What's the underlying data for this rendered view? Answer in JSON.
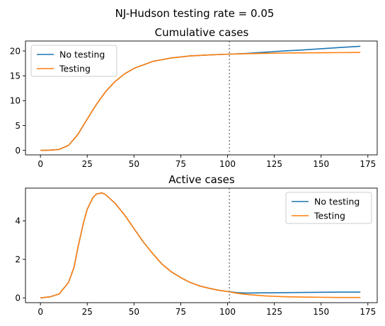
{
  "suptitle": "NJ-Hudson testing rate = 0.05",
  "colors": {
    "no_testing": "#1f77b4",
    "testing": "#ff7f0e",
    "vline": "#808080"
  },
  "chart_data": [
    {
      "type": "line",
      "title": "Cumulative cases",
      "xlabel": "",
      "ylabel": "",
      "xlim": [
        -8,
        180
      ],
      "ylim": [
        -0.9,
        22
      ],
      "xticks": [
        0,
        25,
        50,
        75,
        100,
        125,
        150,
        175
      ],
      "yticks": [
        0,
        5,
        10,
        15,
        20
      ],
      "vline": 101,
      "legend": "top-left",
      "grid": false,
      "series": [
        {
          "name": "No testing",
          "x": [
            0,
            5,
            10,
            15,
            20,
            25,
            30,
            35,
            40,
            45,
            50,
            60,
            70,
            80,
            90,
            100,
            110,
            120,
            130,
            140,
            150,
            160,
            171
          ],
          "y": [
            0.0,
            0.05,
            0.2,
            1.0,
            3.2,
            6.3,
            9.3,
            11.9,
            13.9,
            15.4,
            16.5,
            17.9,
            18.6,
            19.0,
            19.2,
            19.35,
            19.5,
            19.75,
            20.0,
            20.2,
            20.45,
            20.7,
            20.95
          ]
        },
        {
          "name": "Testing",
          "x": [
            0,
            5,
            10,
            15,
            20,
            25,
            30,
            35,
            40,
            45,
            50,
            60,
            70,
            80,
            90,
            100,
            110,
            120,
            130,
            140,
            150,
            160,
            171
          ],
          "y": [
            0.0,
            0.05,
            0.2,
            1.0,
            3.2,
            6.3,
            9.3,
            11.9,
            13.9,
            15.4,
            16.5,
            17.9,
            18.6,
            19.0,
            19.2,
            19.35,
            19.45,
            19.52,
            19.58,
            19.62,
            19.65,
            19.67,
            19.7
          ]
        }
      ]
    },
    {
      "type": "line",
      "title": "Active cases",
      "xlabel": "",
      "ylabel": "",
      "xlim": [
        -8,
        180
      ],
      "ylim": [
        -0.25,
        5.7
      ],
      "xticks": [
        0,
        25,
        50,
        75,
        100,
        125,
        150,
        175
      ],
      "yticks": [
        0,
        2,
        4
      ],
      "vline": 101,
      "legend": "top-right",
      "grid": false,
      "series": [
        {
          "name": "No testing",
          "x": [
            0,
            5,
            10,
            15,
            18,
            20,
            23,
            25,
            28,
            30,
            33,
            35,
            40,
            45,
            50,
            55,
            60,
            65,
            70,
            75,
            80,
            85,
            90,
            95,
            100,
            105,
            110,
            120,
            130,
            140,
            150,
            160,
            171
          ],
          "y": [
            0.0,
            0.05,
            0.2,
            0.8,
            1.6,
            2.6,
            3.9,
            4.6,
            5.2,
            5.4,
            5.45,
            5.35,
            4.9,
            4.3,
            3.6,
            2.9,
            2.3,
            1.75,
            1.35,
            1.05,
            0.8,
            0.62,
            0.5,
            0.4,
            0.33,
            0.27,
            0.25,
            0.26,
            0.27,
            0.28,
            0.29,
            0.3,
            0.3
          ]
        },
        {
          "name": "Testing",
          "x": [
            0,
            5,
            10,
            15,
            18,
            20,
            23,
            25,
            28,
            30,
            33,
            35,
            40,
            45,
            50,
            55,
            60,
            65,
            70,
            75,
            80,
            85,
            90,
            95,
            100,
            105,
            110,
            120,
            130,
            140,
            150,
            160,
            171
          ],
          "y": [
            0.0,
            0.05,
            0.2,
            0.8,
            1.6,
            2.6,
            3.9,
            4.6,
            5.2,
            5.4,
            5.45,
            5.35,
            4.9,
            4.3,
            3.6,
            2.9,
            2.3,
            1.75,
            1.35,
            1.05,
            0.8,
            0.62,
            0.5,
            0.4,
            0.33,
            0.24,
            0.18,
            0.1,
            0.06,
            0.04,
            0.03,
            0.02,
            0.02
          ]
        }
      ]
    }
  ]
}
